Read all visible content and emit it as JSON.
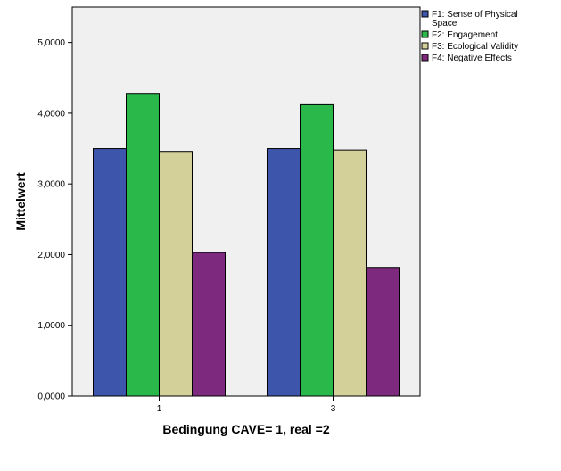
{
  "chart_data": {
    "type": "bar",
    "title": "",
    "xlabel": "Bedingung CAVE= 1, real =2",
    "ylabel": "Mittelwert",
    "categories": [
      "1",
      "3"
    ],
    "ylim": [
      0,
      5.5
    ],
    "yticks": [
      0,
      1,
      2,
      3,
      4,
      5
    ],
    "ytick_labels": [
      "0,0000",
      "1,0000",
      "2,0000",
      "3,0000",
      "4,0000",
      "5,0000"
    ],
    "grid": false,
    "legend_position": "top-right",
    "plot_background": "#f0f0f0",
    "series": [
      {
        "name": "F1: Sense of Physical Space",
        "legend_lines": [
          "F1: Sense of Physical",
          "Space"
        ],
        "color": "#3d55ab",
        "values": [
          3.5,
          3.5
        ]
      },
      {
        "name": "F2: Engagement",
        "legend_lines": [
          "F2: Engagement"
        ],
        "color": "#2ab84a",
        "values": [
          4.28,
          4.12
        ]
      },
      {
        "name": "F3: Ecological Validity",
        "legend_lines": [
          "F3: Ecological Validity"
        ],
        "color": "#d4d09a",
        "values": [
          3.46,
          3.48
        ]
      },
      {
        "name": "F4: Negative Effects",
        "legend_lines": [
          "F4: Negative Effects"
        ],
        "color": "#7d2a7e",
        "values": [
          2.03,
          1.82
        ]
      }
    ]
  }
}
